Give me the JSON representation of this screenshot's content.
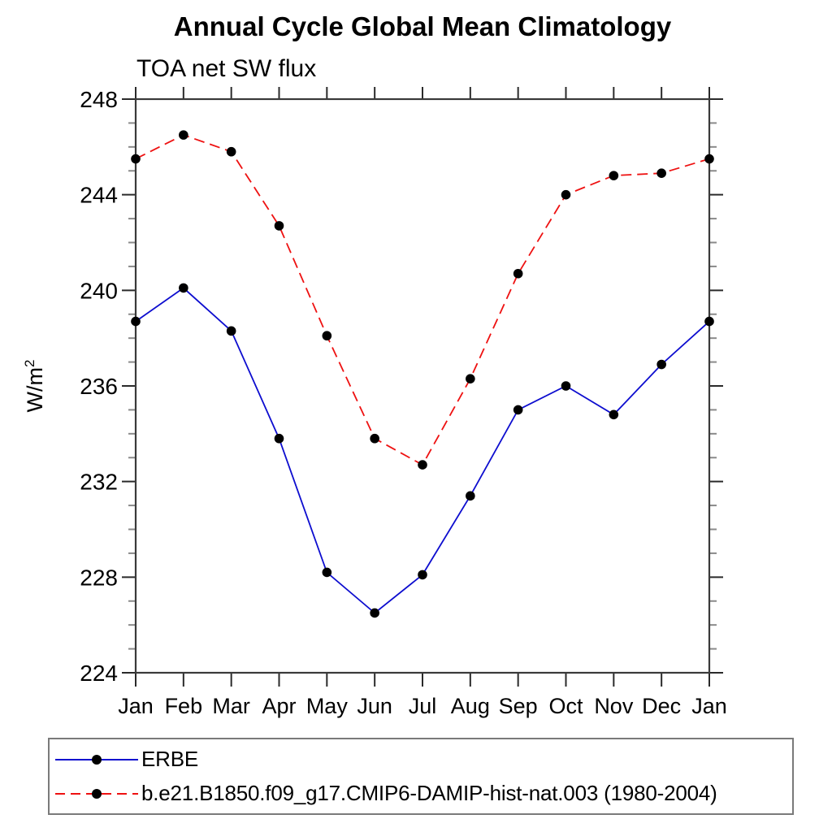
{
  "page": {
    "title": "Annual Cycle Global Mean Climatology",
    "subtitle": "TOA net SW flux"
  },
  "chart_data": {
    "type": "line",
    "title": "Annual Cycle Global Mean Climatology",
    "subtitle": "TOA net SW flux",
    "ylabel_base": "W/m",
    "ylabel_exponent": "2",
    "categories": [
      "Jan",
      "Feb",
      "Mar",
      "Apr",
      "May",
      "Jun",
      "Jul",
      "Aug",
      "Sep",
      "Oct",
      "Nov",
      "Dec",
      "Jan"
    ],
    "series": [
      {
        "name": "ERBE",
        "line_style": "solid",
        "color": "#0d0dcf",
        "marker": "circle",
        "marker_color": "#000000",
        "values": [
          238.7,
          240.1,
          238.3,
          233.8,
          228.2,
          226.5,
          228.1,
          231.4,
          235.0,
          236.0,
          234.8,
          236.9,
          238.7
        ]
      },
      {
        "name": "b.e21.B1850.f09_g17.CMIP6-DAMIP-hist-nat.003 (1980-2004)",
        "line_style": "dashed",
        "color": "#ee1111",
        "marker": "circle",
        "marker_color": "#000000",
        "values": [
          245.5,
          246.5,
          245.8,
          242.7,
          238.1,
          233.8,
          232.7,
          236.3,
          240.7,
          244.0,
          244.8,
          244.9,
          245.5
        ]
      }
    ],
    "ylim": [
      224,
      248
    ],
    "ytick_major_interval": 4,
    "ytick_minor_interval": 1,
    "ytick_labels": [
      "224",
      "228",
      "232",
      "236",
      "240",
      "244",
      "248"
    ],
    "grid": false,
    "legend_position": "bottom-left-box"
  },
  "legend": {
    "entries": [
      {
        "label": "ERBE"
      },
      {
        "label": "b.e21.B1850.f09_g17.CMIP6-DAMIP-hist-nat.003 (1980-2004)"
      }
    ]
  },
  "colors": {
    "erbe_line": "#0d0dcf",
    "model_line": "#ee1111",
    "marker": "#000000",
    "axis": "#3a3a3a",
    "tick_major": "#2a2a2a",
    "tick_minor": "#8a8a8a",
    "text": "#000000"
  }
}
